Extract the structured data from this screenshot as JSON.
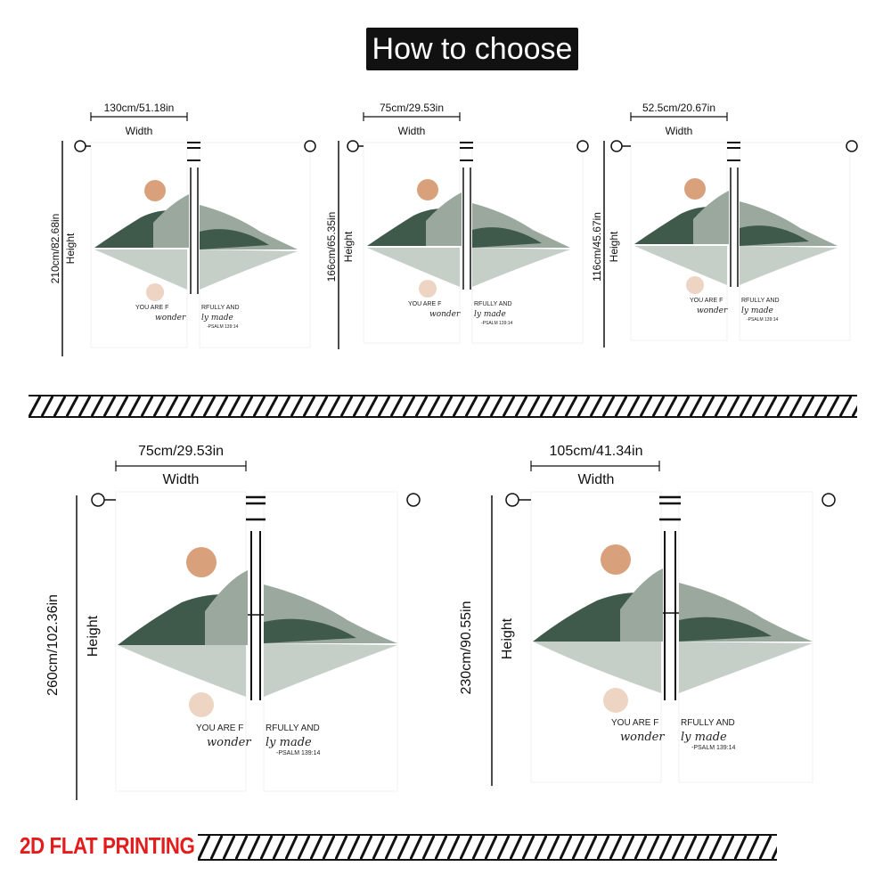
{
  "header": {
    "title": "How to choose"
  },
  "panels": [
    {
      "id": "p1",
      "width_value": "130cm/51.18in",
      "width_label": "Width",
      "height_value": "210cm/82.68in",
      "height_label": "Height"
    },
    {
      "id": "p2",
      "width_value": "75cm/29.53in",
      "width_label": "Width",
      "height_value": "166cm/65.35in",
      "height_label": "Height"
    },
    {
      "id": "p3",
      "width_value": "52.5cm/20.67in",
      "width_label": "Width",
      "height_value": "116cm/45.67in",
      "height_label": "Height"
    },
    {
      "id": "p4",
      "width_value": "75cm/29.53in",
      "width_label": "Width",
      "height_value": "260cm/102.36in",
      "height_label": "Height"
    },
    {
      "id": "p5",
      "width_value": "105cm/41.34in",
      "width_label": "Width",
      "height_value": "230cm/90.55in",
      "height_label": "Height"
    }
  ],
  "curtain_print": {
    "line1_left": "YOU ARE F",
    "line1_right": "RFULLY AND",
    "line2_left": "wonder",
    "line2_right": "ly made",
    "citation": "-PSALM 139:14"
  },
  "footer": {
    "label": "2D FLAT PRINTING"
  },
  "colors": {
    "title_bg": "#111111",
    "footer_red": "#e31c1c",
    "mountain_dark": "#3f5a4b",
    "mountain_light": "#9aa89e",
    "sun": "#d9a07c"
  }
}
